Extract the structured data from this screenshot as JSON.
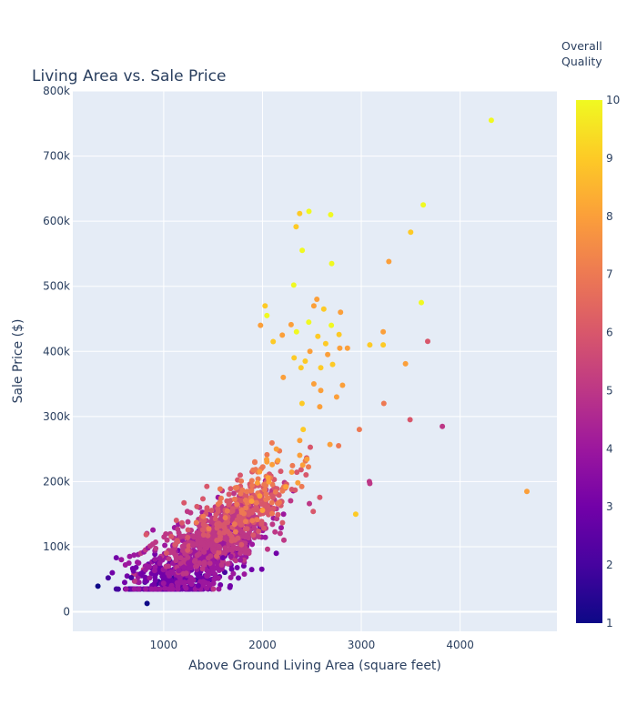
{
  "chart_data": {
    "type": "scatter",
    "title": "Living Area vs. Sale Price",
    "xlabel": "Above Ground Living Area (square feet)",
    "ylabel": "Sale Price ($)",
    "xlim": [
      80,
      4980
    ],
    "ylim": [
      -30000,
      800000
    ],
    "xticks": [
      1000,
      2000,
      3000,
      4000
    ],
    "xtick_labels": [
      "1000",
      "2000",
      "3000",
      "4000"
    ],
    "yticks": [
      0,
      100000,
      200000,
      300000,
      400000,
      500000,
      600000,
      700000,
      800000
    ],
    "ytick_labels": [
      "0",
      "100k",
      "200k",
      "300k",
      "400k",
      "500k",
      "600k",
      "700k",
      "800k"
    ],
    "grid": true,
    "colorbar": {
      "title_lines": [
        "Overall",
        "Quality"
      ],
      "min": 1,
      "max": 10,
      "ticks": [
        "1",
        "2",
        "3",
        "4",
        "5",
        "6",
        "7",
        "8",
        "9",
        "10"
      ],
      "colors": [
        "#0d0887",
        "#46039f",
        "#7201a8",
        "#9c179e",
        "#bd3786",
        "#d8576b",
        "#ed7953",
        "#fb9f3a",
        "#fdca26",
        "#f0f921"
      ]
    },
    "colors": {
      "plot_bg": "#e5ecf6",
      "grid": "#ffffff",
      "text": "#2a3f5f"
    },
    "series": [
      {
        "x": [
          4316,
          4676,
          3627,
          3500,
          3608,
          3279,
          2470,
          2376,
          2690,
          2340,
          2402,
          2700,
          2316,
          3086,
          3222,
          3447,
          3228,
          3672,
          3222,
          3493,
          3820,
          3082,
          3086,
          2944,
          2980,
          2775,
          2790,
          2550,
          2620,
          2697,
          2520,
          2640,
          2782,
          2710,
          2590,
          2468,
          2560,
          2660,
          2590,
          2860,
          2810,
          2750,
          2580,
          2770,
          2400,
          2432,
          2290,
          2200,
          2026,
          2045,
          1980,
          2108,
          2390,
          2320,
          2210,
          2344,
          2480,
          2520
        ],
        "y": [
          755000,
          184750,
          625000,
          582933,
          475000,
          538000,
          615000,
          611657,
          610000,
          591587,
          555000,
          535000,
          501837,
          410000,
          430000,
          381000,
          320000,
          415298,
          410000,
          295000,
          284700,
          200000,
          197000,
          150000,
          280000,
          426000,
          460000,
          480000,
          465000,
          440000,
          470000,
          412000,
          405000,
          380000,
          375000,
          445000,
          423000,
          395000,
          340000,
          405000,
          348000,
          330000,
          315000,
          255000,
          320000,
          385000,
          441000,
          425000,
          470000,
          455000,
          440000,
          415000,
          375000,
          390000,
          360000,
          430000,
          400000,
          350000
        ],
        "quality": [
          10,
          8,
          10,
          9,
          10,
          8,
          10,
          9,
          10,
          9,
          10,
          10,
          10,
          9,
          8,
          8,
          7,
          6,
          9,
          6,
          5,
          5,
          5,
          9,
          7,
          9,
          8,
          8,
          9,
          10,
          8,
          9,
          8,
          9,
          9,
          10,
          9,
          8,
          8,
          8,
          8,
          8,
          8,
          7,
          9,
          9,
          8,
          8,
          9,
          10,
          8,
          9,
          9,
          9,
          8,
          10,
          8,
          8
        ]
      },
      {
        "x": [
          334,
          438,
          480,
          520,
          540,
          605,
          630,
          672,
          694,
          720,
          747,
          768,
          796,
          816,
          832,
          848,
          882,
          904,
          912,
          960,
          520,
          572,
          612,
          656,
          700,
          742,
          770,
          800,
          816,
          842,
          864,
          890,
          918,
          1034,
          1004,
          1350,
          1440,
          1512,
          1092,
          1152,
          1200,
          1250,
          1320,
          1600,
          1680,
          1776,
          1862,
          1500,
          1560,
          1296,
          1380
        ],
        "y": [
          39300,
          52000,
          60000,
          35000,
          34900,
          45000,
          55000,
          52500,
          62500,
          68000,
          75000,
          58500,
          61000,
          64500,
          12789,
          68400,
          76500,
          79000,
          80500,
          82000,
          83000,
          80000,
          72000,
          85000,
          87000,
          88000,
          90000,
          92000,
          95000,
          98000,
          101000,
          104000,
          107000,
          110000,
          115000,
          40000,
          55000,
          50000,
          60000,
          63000,
          68000,
          75000,
          79000,
          83000,
          85000,
          79500,
          90000,
          95000,
          98000,
          102000,
          106000
        ],
        "quality": [
          1,
          2,
          3,
          2,
          2,
          3,
          3,
          2,
          3,
          3,
          4,
          3,
          3,
          4,
          1,
          4,
          4,
          3,
          4,
          4,
          3,
          4,
          4,
          4,
          4,
          4,
          5,
          4,
          5,
          4,
          5,
          5,
          5,
          5,
          5,
          3,
          4,
          4,
          4,
          4,
          4,
          4,
          5,
          3,
          4,
          4,
          5,
          5,
          5,
          5,
          5
        ]
      }
    ]
  }
}
